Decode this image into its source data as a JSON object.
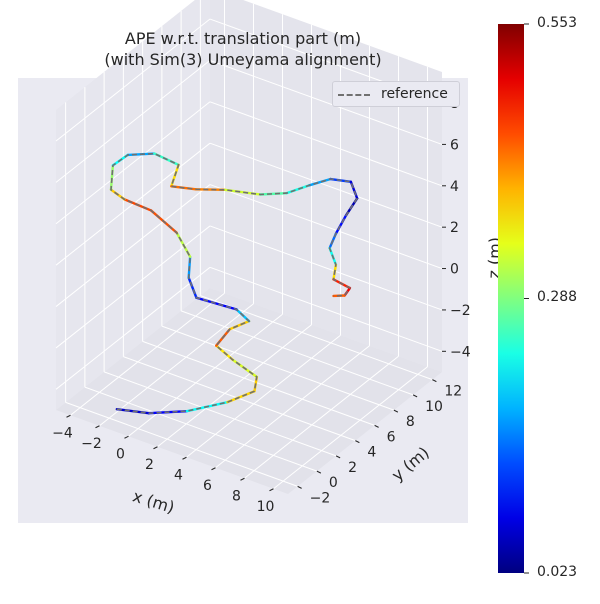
{
  "chart_data": {
    "type": "line3d",
    "title": "APE w.r.t. translation part (m)",
    "subtitle": "(with Sim(3) Umeyama alignment)",
    "xlabel": "x (m)",
    "ylabel": "y (m)",
    "zlabel": "z (m)",
    "x_ticks": [
      "−4",
      "−2",
      "0",
      "2",
      "4",
      "6",
      "8",
      "10"
    ],
    "y_ticks": [
      "−2",
      "0",
      "2",
      "4",
      "6",
      "8",
      "10",
      "12"
    ],
    "z_ticks": [
      "−4",
      "−2",
      "0",
      "2",
      "4",
      "6",
      "8"
    ],
    "legend": {
      "label": "reference",
      "placement": "top-right"
    },
    "colorbar": {
      "colormap": "jet",
      "min_label": "0.023",
      "mid_label": "0.288",
      "max_label": "0.553",
      "min": 0.023,
      "mid": 0.288,
      "max": 0.553
    },
    "trajectory": [
      {
        "x": -1.8,
        "y": -1.5,
        "z": -4.7,
        "ape": 0.05
      },
      {
        "x": 0.2,
        "y": -1.2,
        "z": -4.5,
        "ape": 0.08
      },
      {
        "x": 2.5,
        "y": -0.7,
        "z": -4.0,
        "ape": 0.1
      },
      {
        "x": 4.5,
        "y": 0.5,
        "z": -3.5,
        "ape": 0.35
      },
      {
        "x": 5.5,
        "y": 1.8,
        "z": -3.2,
        "ape": 0.4
      },
      {
        "x": 5.0,
        "y": 2.8,
        "z": -3.0,
        "ape": 0.36
      },
      {
        "x": 3.2,
        "y": 3.0,
        "z": -2.7,
        "ape": 0.31
      },
      {
        "x": 2.2,
        "y": 2.8,
        "z": -2.2,
        "ape": 0.42
      },
      {
        "x": 2.6,
        "y": 3.6,
        "z": -1.6,
        "ape": 0.46
      },
      {
        "x": 3.4,
        "y": 4.4,
        "z": -1.3,
        "ape": 0.3
      },
      {
        "x": 2.6,
        "y": 4.3,
        "z": -0.9,
        "ape": 0.08
      },
      {
        "x": 0.5,
        "y": 3.3,
        "z": -0.5,
        "ape": 0.1
      },
      {
        "x": 0.3,
        "y": 2.8,
        "z": 0.6,
        "ape": 0.12
      },
      {
        "x": 0.6,
        "y": 2.5,
        "z": 1.8,
        "ape": 0.22
      },
      {
        "x": 0.0,
        "y": 2.0,
        "z": 3.0,
        "ape": 0.42
      },
      {
        "x": -1.3,
        "y": 1.3,
        "z": 4.0,
        "ape": 0.47
      },
      {
        "x": -2.6,
        "y": 0.5,
        "z": 4.5,
        "ape": 0.43
      },
      {
        "x": -3.2,
        "y": 0.0,
        "z": 5.0,
        "ape": 0.33
      },
      {
        "x": -3.2,
        "y": 0.2,
        "z": 6.1,
        "ape": 0.27
      },
      {
        "x": -2.5,
        "y": 0.7,
        "z": 6.6,
        "ape": 0.18
      },
      {
        "x": -1.2,
        "y": 1.5,
        "z": 6.7,
        "ape": 0.17
      },
      {
        "x": 0.0,
        "y": 2.2,
        "z": 6.2,
        "ape": 0.33
      },
      {
        "x": -0.3,
        "y": 1.9,
        "z": 5.2,
        "ape": 0.41
      },
      {
        "x": 0.8,
        "y": 2.8,
        "z": 5.0,
        "ape": 0.45
      },
      {
        "x": 2.2,
        "y": 3.7,
        "z": 5.0,
        "ape": 0.39
      },
      {
        "x": 3.9,
        "y": 4.8,
        "z": 4.8,
        "ape": 0.27
      },
      {
        "x": 5.2,
        "y": 5.6,
        "z": 4.9,
        "ape": 0.26
      },
      {
        "x": 6.3,
        "y": 6.3,
        "z": 5.3,
        "ape": 0.21
      },
      {
        "x": 7.3,
        "y": 7.0,
        "z": 5.6,
        "ape": 0.14
      },
      {
        "x": 8.3,
        "y": 7.6,
        "z": 5.5,
        "ape": 0.1
      },
      {
        "x": 8.6,
        "y": 7.8,
        "z": 4.7,
        "ape": 0.04
      },
      {
        "x": 8.1,
        "y": 7.4,
        "z": 3.9,
        "ape": 0.06
      },
      {
        "x": 7.6,
        "y": 7.1,
        "z": 3.0,
        "ape": 0.13
      },
      {
        "x": 7.3,
        "y": 6.9,
        "z": 2.3,
        "ape": 0.16
      },
      {
        "x": 7.6,
        "y": 7.1,
        "z": 1.5,
        "ape": 0.3
      },
      {
        "x": 7.5,
        "y": 7.0,
        "z": 0.8,
        "ape": 0.44
      },
      {
        "x": 8.3,
        "y": 7.5,
        "z": 0.4,
        "ape": 0.5
      },
      {
        "x": 8.0,
        "y": 7.4,
        "z": 0.0,
        "ape": 0.48
      },
      {
        "x": 7.5,
        "y": 7.0,
        "z": 0.0,
        "ape": 0.4
      }
    ]
  }
}
